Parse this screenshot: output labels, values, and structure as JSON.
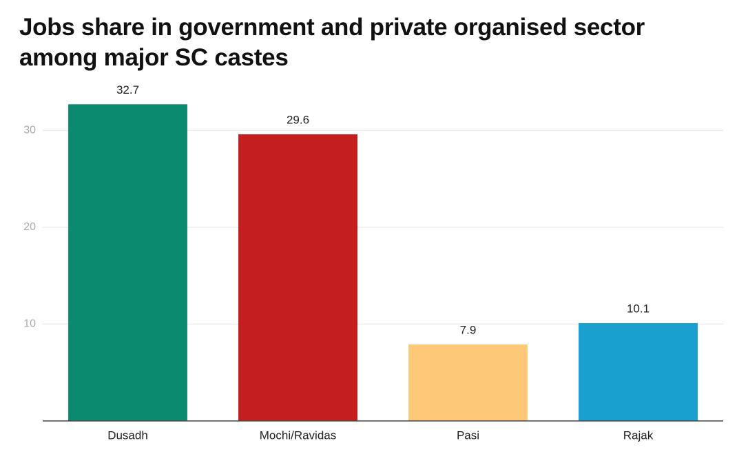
{
  "chart_data": {
    "type": "bar",
    "title": "Jobs share in government and private organised sector among major SC castes",
    "categories": [
      "Dusadh",
      "Mochi/Ravidas",
      "Pasi",
      "Rajak"
    ],
    "values": [
      32.7,
      29.6,
      7.9,
      10.1
    ],
    "colors": [
      "#0b8a6f",
      "#c41e1e",
      "#fdc978",
      "#1aa0cf"
    ],
    "ylim": [
      0,
      35
    ],
    "yticks": [
      10,
      20,
      30
    ],
    "grid": true
  }
}
